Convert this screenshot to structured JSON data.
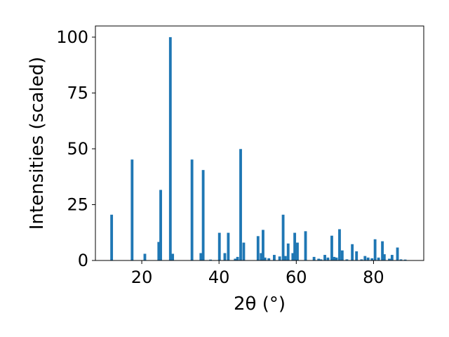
{
  "chart_data": {
    "type": "bar",
    "xlabel": "2θ (°)",
    "ylabel": "Intensities (scaled)",
    "xlim": [
      8,
      93
    ],
    "ylim": [
      0,
      105
    ],
    "xticks": [
      20,
      40,
      60,
      80
    ],
    "yticks": [
      0,
      25,
      50,
      75,
      100
    ],
    "xtick_labels": [
      "20",
      "40",
      "60",
      "80"
    ],
    "ytick_labels": [
      "0",
      "25",
      "50",
      "75",
      "100"
    ],
    "grid": false,
    "bar_color": "#1f77b4",
    "bar_width": 0.7,
    "x": [
      12.2,
      17.5,
      20.8,
      24.4,
      24.9,
      27.4,
      28.0,
      33.0,
      35.3,
      35.9,
      37.8,
      40.1,
      41.5,
      42.4,
      44.2,
      44.8,
      45.6,
      46.4,
      50.1,
      50.9,
      51.4,
      51.9,
      52.9,
      54.3,
      55.7,
      56.6,
      57.2,
      57.9,
      59.1,
      59.6,
      60.3,
      62.4,
      64.6,
      65.8,
      66.4,
      67.4,
      68.2,
      69.2,
      69.8,
      70.4,
      71.2,
      71.9,
      73.1,
      74.5,
      75.6,
      76.9,
      77.8,
      78.6,
      79.6,
      80.4,
      81.3,
      82.3,
      82.8,
      84.1,
      84.8,
      86.2,
      87.1,
      88.2
    ],
    "values": [
      20.5,
      45.2,
      3.0,
      8.3,
      31.6,
      100.0,
      3.0,
      45.2,
      3.3,
      40.5,
      0.4,
      12.4,
      3.3,
      12.4,
      0.8,
      1.6,
      49.9,
      8.0,
      10.9,
      3.3,
      13.7,
      1.3,
      1.0,
      2.5,
      1.8,
      20.5,
      2.0,
      7.6,
      3.3,
      12.4,
      8.0,
      13.1,
      1.6,
      0.8,
      0.5,
      2.5,
      1.3,
      11.1,
      1.6,
      1.3,
      14.0,
      4.5,
      0.5,
      7.3,
      4.1,
      0.5,
      2.0,
      1.3,
      1.0,
      9.5,
      1.3,
      8.6,
      2.8,
      0.8,
      2.5,
      5.8,
      0.5,
      0.4
    ]
  }
}
